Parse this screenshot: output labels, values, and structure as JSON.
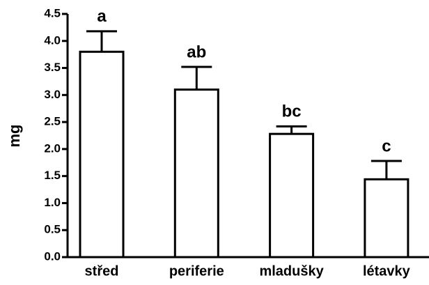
{
  "chart_data": {
    "type": "bar",
    "ylabel": "mg",
    "categories": [
      "střed",
      "periferie",
      "mladušky",
      "létavky"
    ],
    "values": [
      3.8,
      3.1,
      2.28,
      1.44
    ],
    "errors": [
      0.38,
      0.42,
      0.14,
      0.34
    ],
    "annotations": [
      "a",
      "ab",
      "bc",
      "c"
    ],
    "color": "#ffffff",
    "ylim": [
      0,
      4.5
    ],
    "yticks": [
      {
        "value": 0,
        "label": "0.0"
      },
      0.5,
      {
        "value": 1,
        "label": "1.0"
      },
      1.5,
      {
        "value": 2,
        "label": "2.0"
      },
      2.5,
      {
        "value": 3,
        "label": "3.0"
      },
      3.5,
      {
        "value": 4,
        "label": "4.0"
      },
      4.5
    ]
  }
}
